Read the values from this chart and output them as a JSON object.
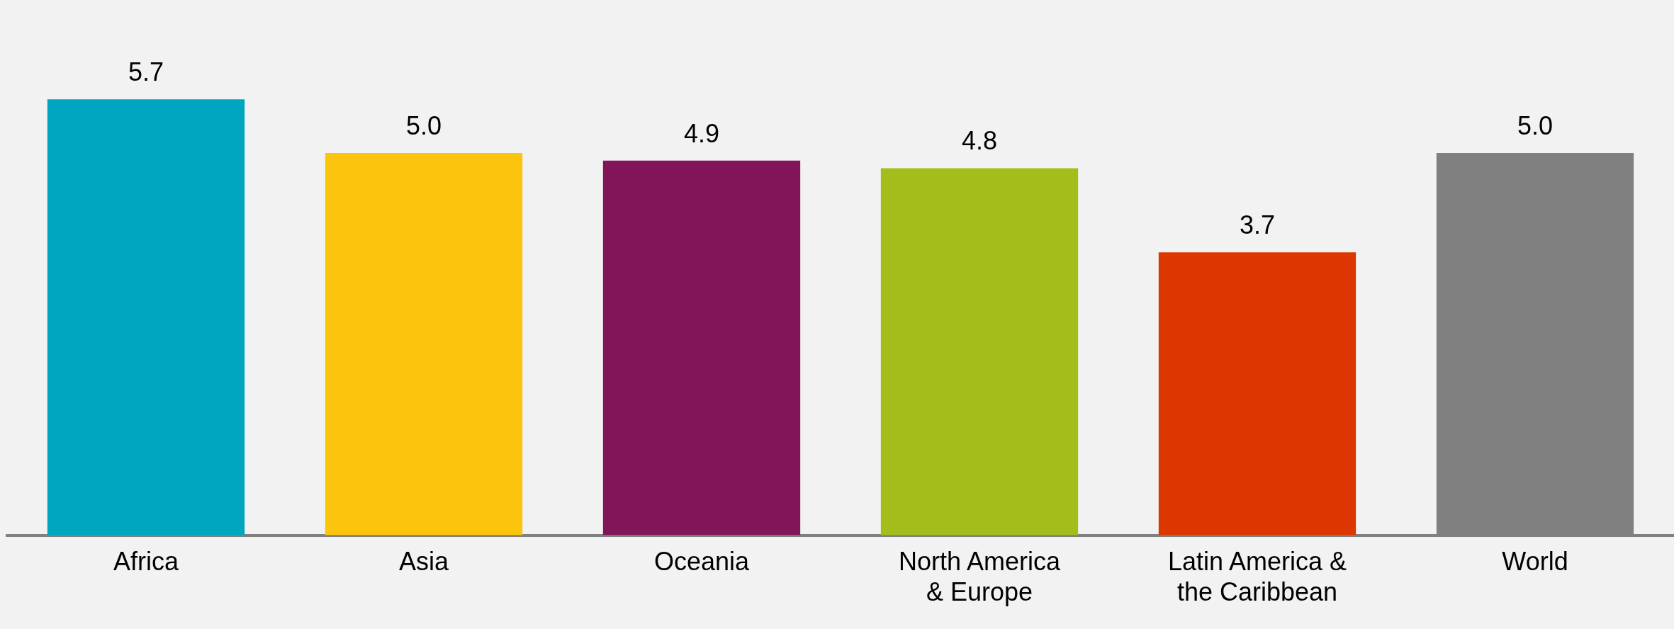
{
  "chart_data": {
    "type": "bar",
    "categories": [
      "Africa",
      "Asia",
      "Oceania",
      "North America & Europe",
      "Latin America & the Caribbean",
      "World"
    ],
    "values": [
      5.7,
      5.0,
      4.9,
      4.8,
      3.7,
      5.0
    ],
    "colors": [
      "#00a5c0",
      "#fbc50d",
      "#82145a",
      "#a4bd1b",
      "#dc3700",
      "#808080"
    ],
    "value_labels": [
      "5.7",
      "5.0",
      "4.9",
      "4.8",
      "3.7",
      "5.0"
    ],
    "grid": false,
    "legend": false,
    "tick_labels": "x"
  }
}
